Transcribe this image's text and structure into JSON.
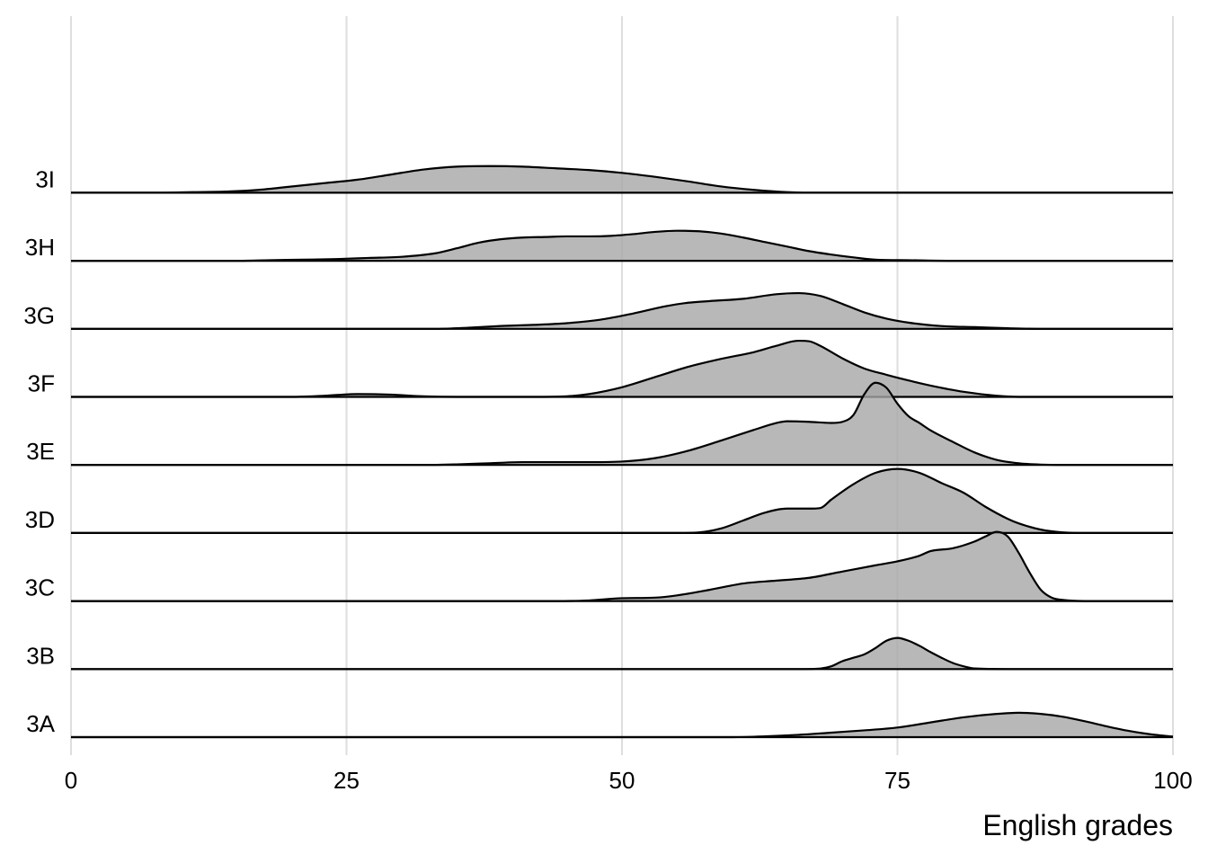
{
  "chart_data": {
    "type": "ridgeline",
    "title": "",
    "xlabel": "English grades",
    "ylabel": "",
    "xlim": [
      0,
      100
    ],
    "x_ticks": [
      0,
      25,
      50,
      75,
      100
    ],
    "x_tick_labels": [
      "0",
      "25",
      "50",
      "75",
      "100"
    ],
    "grid": "vertical",
    "legend": "none",
    "fill_color": "#a6a6a6",
    "fill_opacity": 0.8,
    "line_color": "#000000",
    "density_scale": 5.0,
    "series": [
      {
        "name": "3A",
        "points": [
          [
            0,
            0
          ],
          [
            60,
            0
          ],
          [
            63,
            0.0023
          ],
          [
            66,
            0.0067
          ],
          [
            69,
            0.0133
          ],
          [
            72,
            0.02
          ],
          [
            75,
            0.0283
          ],
          [
            78,
            0.0433
          ],
          [
            81,
            0.0583
          ],
          [
            84,
            0.0683
          ],
          [
            86,
            0.0717
          ],
          [
            88,
            0.0683
          ],
          [
            90,
            0.06
          ],
          [
            92,
            0.0467
          ],
          [
            94,
            0.0317
          ],
          [
            96,
            0.0183
          ],
          [
            98,
            0.0083
          ],
          [
            100,
            0.0017
          ]
        ]
      },
      {
        "name": "3B",
        "points": [
          [
            0,
            0
          ],
          [
            66,
            0
          ],
          [
            68,
            0.0017
          ],
          [
            69,
            0.0083
          ],
          [
            70,
            0.0233
          ],
          [
            71,
            0.0333
          ],
          [
            72,
            0.0433
          ],
          [
            73,
            0.0617
          ],
          [
            74,
            0.0833
          ],
          [
            75,
            0.0917
          ],
          [
            76,
            0.0833
          ],
          [
            77,
            0.0683
          ],
          [
            78,
            0.05
          ],
          [
            79,
            0.0333
          ],
          [
            80,
            0.0183
          ],
          [
            81,
            0.0083
          ],
          [
            82,
            0.0017
          ],
          [
            85,
            0
          ],
          [
            100,
            0
          ]
        ]
      },
      {
        "name": "3C",
        "points": [
          [
            0,
            0
          ],
          [
            44,
            0
          ],
          [
            47,
            0.0017
          ],
          [
            50,
            0.0083
          ],
          [
            53,
            0.01
          ],
          [
            55,
            0.0167
          ],
          [
            58,
            0.0333
          ],
          [
            61,
            0.0517
          ],
          [
            64,
            0.06
          ],
          [
            67,
            0.0683
          ],
          [
            70,
            0.0867
          ],
          [
            73,
            0.105
          ],
          [
            75,
            0.1167
          ],
          [
            77,
            0.1333
          ],
          [
            78,
            0.1467
          ],
          [
            80,
            0.155
          ],
          [
            82,
            0.175
          ],
          [
            83,
            0.19
          ],
          [
            84,
            0.2033
          ],
          [
            85,
            0.19
          ],
          [
            86,
            0.1417
          ],
          [
            87,
            0.0833
          ],
          [
            88,
            0.0333
          ],
          [
            89,
            0.01
          ],
          [
            90,
            0.0033
          ],
          [
            92,
            0
          ],
          [
            100,
            0
          ]
        ]
      },
      {
        "name": "3D",
        "points": [
          [
            0,
            0
          ],
          [
            55,
            0
          ],
          [
            57,
            0.0017
          ],
          [
            59,
            0.0133
          ],
          [
            61,
            0.0367
          ],
          [
            63,
            0.06
          ],
          [
            65,
            0.0717
          ],
          [
            67,
            0.0717
          ],
          [
            68,
            0.0733
          ],
          [
            69,
            0.0983
          ],
          [
            71,
            0.1433
          ],
          [
            73,
            0.1767
          ],
          [
            75,
            0.1883
          ],
          [
            77,
            0.1767
          ],
          [
            79,
            0.1467
          ],
          [
            81,
            0.1183
          ],
          [
            83,
            0.0767
          ],
          [
            85,
            0.0417
          ],
          [
            86,
            0.0283
          ],
          [
            88,
            0.01
          ],
          [
            90,
            0.0017
          ],
          [
            92,
            0
          ],
          [
            100,
            0
          ]
        ]
      },
      {
        "name": "3E",
        "points": [
          [
            0,
            0
          ],
          [
            32,
            0
          ],
          [
            35,
            0.0017
          ],
          [
            38,
            0.005
          ],
          [
            41,
            0.0083
          ],
          [
            44,
            0.0083
          ],
          [
            47,
            0.0083
          ],
          [
            50,
            0.01
          ],
          [
            53,
            0.02
          ],
          [
            56,
            0.0417
          ],
          [
            59,
            0.0717
          ],
          [
            62,
            0.1033
          ],
          [
            64,
            0.1233
          ],
          [
            65,
            0.1283
          ],
          [
            67,
            0.1267
          ],
          [
            69,
            0.1233
          ],
          [
            70,
            0.1267
          ],
          [
            71,
            0.1467
          ],
          [
            72,
            0.2083
          ],
          [
            73,
            0.2417
          ],
          [
            74,
            0.2267
          ],
          [
            75,
            0.18
          ],
          [
            76,
            0.1433
          ],
          [
            77,
            0.1233
          ],
          [
            78,
            0.1017
          ],
          [
            80,
            0.0683
          ],
          [
            82,
            0.0367
          ],
          [
            84,
            0.015
          ],
          [
            86,
            0.005
          ],
          [
            88,
            0.001
          ],
          [
            90,
            0
          ],
          [
            100,
            0
          ]
        ]
      },
      {
        "name": "3F",
        "points": [
          [
            0,
            0
          ],
          [
            20,
            0
          ],
          [
            23,
            0.0033
          ],
          [
            26,
            0.0083
          ],
          [
            29,
            0.0067
          ],
          [
            32,
            0.0017
          ],
          [
            35,
            0
          ],
          [
            38,
            0
          ],
          [
            42,
            0
          ],
          [
            45,
            0.0017
          ],
          [
            47,
            0.0083
          ],
          [
            50,
            0.0283
          ],
          [
            53,
            0.0583
          ],
          [
            56,
            0.0883
          ],
          [
            59,
            0.1117
          ],
          [
            62,
            0.1317
          ],
          [
            64,
            0.15
          ],
          [
            66,
            0.165
          ],
          [
            67,
            0.1633
          ],
          [
            68,
            0.15
          ],
          [
            70,
            0.1133
          ],
          [
            72,
            0.0833
          ],
          [
            74,
            0.065
          ],
          [
            76,
            0.0483
          ],
          [
            78,
            0.0333
          ],
          [
            81,
            0.015
          ],
          [
            84,
            0.0033
          ],
          [
            86,
            0
          ],
          [
            100,
            0
          ]
        ]
      },
      {
        "name": "3G",
        "points": [
          [
            0,
            0
          ],
          [
            33,
            0
          ],
          [
            36,
            0.0033
          ],
          [
            39,
            0.0083
          ],
          [
            42,
            0.0117
          ],
          [
            45,
            0.0167
          ],
          [
            48,
            0.0267
          ],
          [
            51,
            0.045
          ],
          [
            54,
            0.0667
          ],
          [
            56,
            0.0767
          ],
          [
            58,
            0.0817
          ],
          [
            61,
            0.0883
          ],
          [
            64,
            0.1017
          ],
          [
            66,
            0.105
          ],
          [
            68,
            0.0967
          ],
          [
            70,
            0.0733
          ],
          [
            72,
            0.0483
          ],
          [
            74,
            0.03
          ],
          [
            76,
            0.0183
          ],
          [
            79,
            0.0083
          ],
          [
            82,
            0.005
          ],
          [
            85,
            0.0017
          ],
          [
            88,
            0
          ],
          [
            100,
            0
          ]
        ]
      },
      {
        "name": "3H",
        "points": [
          [
            0,
            0
          ],
          [
            15,
            0
          ],
          [
            18,
            0.0017
          ],
          [
            21,
            0.0033
          ],
          [
            24,
            0.005
          ],
          [
            27,
            0.0083
          ],
          [
            30,
            0.0117
          ],
          [
            33,
            0.0217
          ],
          [
            35,
            0.0367
          ],
          [
            37,
            0.0533
          ],
          [
            39,
            0.0633
          ],
          [
            41,
            0.0683
          ],
          [
            43,
            0.07
          ],
          [
            45,
            0.0717
          ],
          [
            47,
            0.0717
          ],
          [
            49,
            0.0733
          ],
          [
            51,
            0.0783
          ],
          [
            53,
            0.085
          ],
          [
            55,
            0.0883
          ],
          [
            57,
            0.0867
          ],
          [
            59,
            0.08
          ],
          [
            61,
            0.0683
          ],
          [
            63,
            0.055
          ],
          [
            65,
            0.0417
          ],
          [
            67,
            0.0283
          ],
          [
            69,
            0.0183
          ],
          [
            71,
            0.01
          ],
          [
            73,
            0.0033
          ],
          [
            76,
            0.0017
          ],
          [
            80,
            0
          ],
          [
            100,
            0
          ]
        ]
      },
      {
        "name": "3I",
        "points": [
          [
            0,
            0
          ],
          [
            8,
            0
          ],
          [
            11,
            0.0017
          ],
          [
            14,
            0.0033
          ],
          [
            17,
            0.0083
          ],
          [
            20,
            0.0183
          ],
          [
            23,
            0.0283
          ],
          [
            26,
            0.0383
          ],
          [
            29,
            0.0533
          ],
          [
            32,
            0.0683
          ],
          [
            35,
            0.0767
          ],
          [
            38,
            0.0783
          ],
          [
            41,
            0.0767
          ],
          [
            44,
            0.0717
          ],
          [
            47,
            0.0667
          ],
          [
            50,
            0.0583
          ],
          [
            53,
            0.0467
          ],
          [
            56,
            0.0333
          ],
          [
            59,
            0.0183
          ],
          [
            62,
            0.0083
          ],
          [
            65,
            0.0017
          ],
          [
            68,
            0
          ],
          [
            100,
            0
          ]
        ]
      }
    ]
  }
}
